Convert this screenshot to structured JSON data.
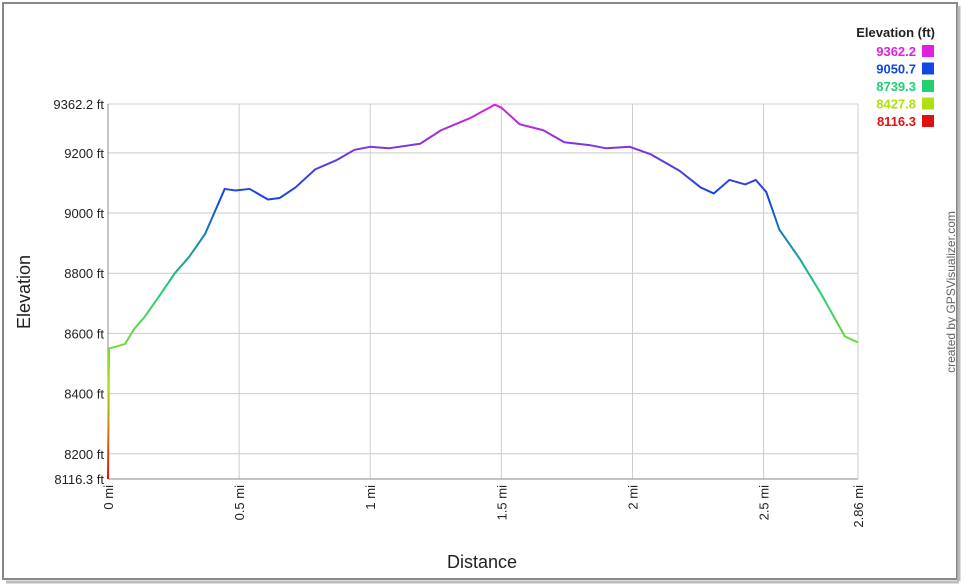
{
  "chart_data": {
    "type": "line",
    "x_label": "Distance",
    "y_label": "Elevation",
    "legend_title": "Elevation (ft)",
    "credit": "created by GPSVisualizer.com",
    "x": [
      0,
      0.004,
      0.03,
      0.065,
      0.1,
      0.14,
      0.2,
      0.255,
      0.31,
      0.37,
      0.41,
      0.445,
      0.485,
      0.54,
      0.61,
      0.655,
      0.715,
      0.79,
      0.87,
      0.94,
      1.0,
      1.07,
      1.19,
      1.27,
      1.38,
      1.475,
      1.5,
      1.57,
      1.66,
      1.74,
      1.84,
      1.9,
      1.99,
      2.07,
      2.18,
      2.26,
      2.31,
      2.37,
      2.43,
      2.47,
      2.51,
      2.56,
      2.64,
      2.72,
      2.81,
      2.86
    ],
    "values": [
      8116.3,
      8550,
      8556,
      8565,
      8615,
      8655,
      8730,
      8800,
      8855,
      8930,
      9010,
      9080,
      9075,
      9080,
      9045,
      9050,
      9085,
      9145,
      9175,
      9210,
      9220,
      9215,
      9230,
      9275,
      9315,
      9360,
      9350,
      9295,
      9275,
      9235,
      9225,
      9215,
      9220,
      9195,
      9140,
      9085,
      9065,
      9110,
      9095,
      9110,
      9070,
      8945,
      8845,
      8730,
      8590,
      8570
    ],
    "colorscale_values": [
      9362.2,
      9050.7,
      8739.3,
      8427.8,
      8116.3
    ],
    "colorscale_colors": [
      "#e020e0",
      "#1048e0",
      "#20d070",
      "#b0e010",
      "#e01010"
    ],
    "xlim": [
      0,
      2.86
    ],
    "xticks": [
      {
        "value": 0,
        "label": "0 mi"
      },
      {
        "value": 0.5,
        "label": "0.5 mi"
      },
      {
        "value": 1,
        "label": "1 mi"
      },
      {
        "value": 1.5,
        "label": "1.5 mi"
      },
      {
        "value": 2,
        "label": "2 mi"
      },
      {
        "value": 2.5,
        "label": "2.5 mi"
      },
      {
        "value": 2.86,
        "label": "2.86 mi"
      }
    ],
    "ylim": [
      8116.3,
      9362.2
    ],
    "yticks": [
      {
        "value": 8116.3,
        "label": "8116.3 ft"
      },
      {
        "value": 8200,
        "label": "8200 ft"
      },
      {
        "value": 8400,
        "label": "8400 ft"
      },
      {
        "value": 8600,
        "label": "8600 ft"
      },
      {
        "value": 8800,
        "label": "8800 ft"
      },
      {
        "value": 9000,
        "label": "9000 ft"
      },
      {
        "value": 9200,
        "label": "9200 ft"
      },
      {
        "value": 9362.2,
        "label": "9362.2 ft"
      }
    ],
    "grid": true
  }
}
